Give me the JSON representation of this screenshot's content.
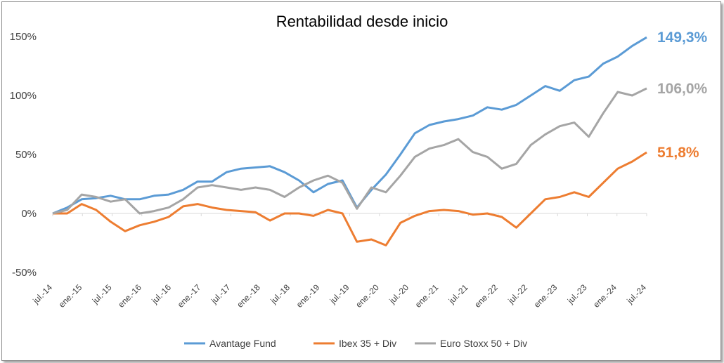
{
  "chart_data": {
    "type": "line",
    "title": "Rentabilidad desde inicio",
    "xlabel": "",
    "ylabel": "",
    "ylim": [
      -50,
      150
    ],
    "y_ticks": [
      150,
      100,
      50,
      0,
      -50
    ],
    "y_tick_labels": [
      "150%",
      "100%",
      "50%",
      "0%",
      "-50%"
    ],
    "x_tick_labels": [
      "jul.-14",
      "ene.-15",
      "jul.-15",
      "ene.-16",
      "jul.-16",
      "ene.-17",
      "jul.-17",
      "ene.-18",
      "jul.-18",
      "ene.-19",
      "jul.-19",
      "ene.-20",
      "jul.-20",
      "ene.-21",
      "jul.-21",
      "ene.-22",
      "jul.-22",
      "ene.-23",
      "jul.-23",
      "ene.-24",
      "jul.-24"
    ],
    "grid": false,
    "legend_position": "bottom",
    "end_labels": [
      "149,3%",
      "106,0%",
      "51,8%"
    ],
    "x": [
      0,
      3,
      6,
      9,
      12,
      15,
      18,
      21,
      24,
      27,
      30,
      33,
      36,
      39,
      42,
      45,
      48,
      51,
      54,
      57,
      60,
      63,
      66,
      69,
      72,
      75,
      78,
      81,
      84,
      87,
      90,
      93,
      96,
      99,
      102,
      105,
      108,
      111,
      114,
      117,
      120,
      123
    ],
    "series": [
      {
        "name": "Avantage Fund",
        "color": "#5b9bd5",
        "values": [
          0,
          5,
          12,
          13,
          15,
          12,
          12,
          15,
          16,
          20,
          27,
          27,
          35,
          38,
          39,
          40,
          35,
          28,
          18,
          25,
          28,
          5,
          20,
          33,
          50,
          68,
          75,
          78,
          80,
          83,
          90,
          88,
          92,
          100,
          108,
          104,
          113,
          116,
          127,
          133,
          142,
          149.3
        ]
      },
      {
        "name": "Ibex 35 + Div",
        "color": "#ed7d31",
        "values": [
          0,
          0,
          8,
          3,
          -7,
          -15,
          -10,
          -7,
          -3,
          6,
          8,
          5,
          3,
          2,
          1,
          -6,
          0,
          0,
          -2,
          3,
          0,
          -24,
          -22,
          -27,
          -8,
          -2,
          2,
          3,
          2,
          -1,
          0,
          -3,
          -12,
          0,
          12,
          14,
          18,
          14,
          26,
          38,
          44,
          51.8
        ]
      },
      {
        "name": "Euro Stoxx 50 + Div",
        "color": "#a5a5a5",
        "values": [
          0,
          3,
          16,
          14,
          10,
          12,
          0,
          2,
          5,
          12,
          22,
          24,
          22,
          20,
          22,
          20,
          14,
          22,
          28,
          32,
          26,
          4,
          22,
          18,
          32,
          48,
          55,
          58,
          63,
          52,
          48,
          38,
          42,
          58,
          67,
          74,
          77,
          65,
          85,
          103,
          100,
          106.0
        ]
      }
    ]
  }
}
